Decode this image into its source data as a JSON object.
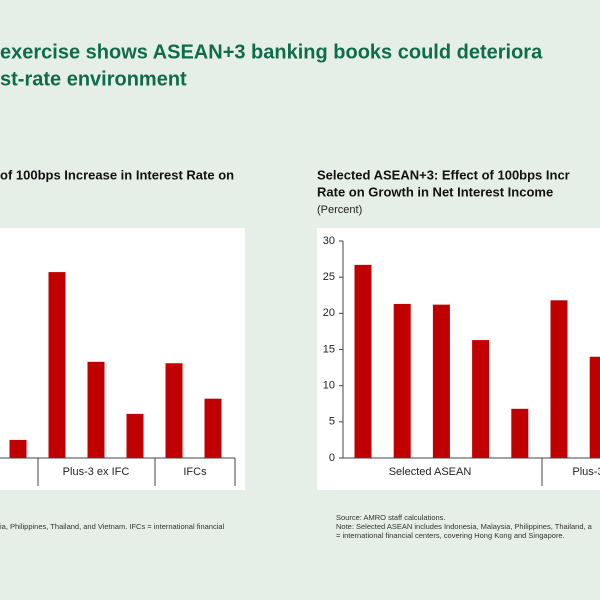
{
  "slide_title": [
    "exercise shows ASEAN+3 banking books could deteriora",
    "st-rate environment"
  ],
  "chart_data": [
    {
      "type": "bar",
      "title": [
        "of 100bps Increase in Interest Rate on"
      ],
      "categories": [
        null,
        null,
        null,
        null,
        null,
        null
      ],
      "values": [
        2.5,
        25.7,
        13.3,
        6.1,
        13.1,
        8.2
      ],
      "color": "#c00000",
      "ylim": [
        0,
        30
      ],
      "x_groups": [
        "Plus-3 ex IFC",
        "IFCs"
      ],
      "notes": [
        "ia, Philippines, Thailand, and Vietnam. IFCs = international financial"
      ]
    },
    {
      "type": "bar",
      "title": [
        "Selected ASEAN+3: Effect of 100bps Incr",
        "Rate on Growth in Net Interest Income"
      ],
      "subtitle": "(Percent)",
      "categories": [
        null,
        null,
        null,
        null,
        null,
        null,
        null
      ],
      "values": [
        26.7,
        21.3,
        21.2,
        16.3,
        6.8,
        21.8,
        14
      ],
      "color": "#c00000",
      "ylim": [
        0,
        30
      ],
      "yticks": [
        0,
        5,
        10,
        15,
        20,
        25,
        30
      ],
      "x_groups": [
        "Selected ASEAN",
        "Plus-3"
      ],
      "notes": [
        "Source: AMRO staff calculations.",
        "Note: Selected ASEAN includes Indonesia, Malaysia, Philippines, Thailand, a",
        "= international financial centers, covering Hong Kong and Singapore."
      ]
    }
  ]
}
